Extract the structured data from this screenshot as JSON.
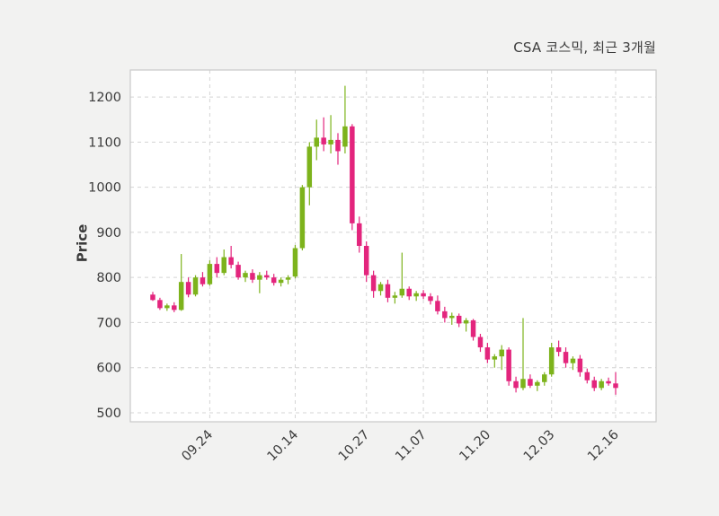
{
  "title": "CSA 코스믹, 최근 3개월",
  "y_axis": {
    "label": "Price",
    "ticks": [
      500,
      600,
      700,
      800,
      900,
      1000,
      1100,
      1200
    ],
    "range": [
      480,
      1260
    ]
  },
  "x_axis": {
    "tick_labels": [
      "09.24",
      "10.14",
      "10.27",
      "11.07",
      "11.20",
      "12.03",
      "12.16"
    ],
    "tick_indices": [
      8,
      20,
      30,
      38,
      47,
      56,
      65
    ]
  },
  "colors": {
    "up": "#7db31c",
    "down": "#e3257d",
    "grid": "#d4d4d4",
    "plot_border": "#c9c9c9",
    "plot_bg": "#ffffff",
    "page_bg": "#f2f2f1",
    "text": "#3c3c3c"
  },
  "chart_data": {
    "type": "candlestick",
    "title": "CSA 코스믹, 최근 3개월",
    "xlabel": "",
    "ylabel": "Price",
    "ylim": [
      500,
      1200
    ],
    "grid": "dashed",
    "columns": [
      "date",
      "open",
      "high",
      "low",
      "close"
    ],
    "candles": [
      [
        "09.12",
        762,
        768,
        748,
        750
      ],
      [
        "09.13",
        750,
        755,
        728,
        732
      ],
      [
        "09.16",
        732,
        742,
        726,
        738
      ],
      [
        "09.17",
        738,
        745,
        723,
        728
      ],
      [
        "09.18",
        728,
        852,
        726,
        790
      ],
      [
        "09.19",
        790,
        800,
        756,
        762
      ],
      [
        "09.20",
        762,
        805,
        758,
        800
      ],
      [
        "09.23",
        800,
        812,
        780,
        785
      ],
      [
        "09.24",
        785,
        838,
        782,
        830
      ],
      [
        "09.25",
        830,
        845,
        800,
        810
      ],
      [
        "09.26",
        810,
        862,
        805,
        845
      ],
      [
        "09.27",
        845,
        870,
        820,
        828
      ],
      [
        "09.30",
        828,
        835,
        795,
        800
      ],
      [
        "10.01",
        800,
        815,
        790,
        810
      ],
      [
        "10.02",
        810,
        818,
        788,
        795
      ],
      [
        "10.04",
        795,
        812,
        765,
        805
      ],
      [
        "10.07",
        805,
        815,
        795,
        800
      ],
      [
        "10.08",
        800,
        808,
        782,
        788
      ],
      [
        "10.10",
        788,
        800,
        780,
        795
      ],
      [
        "10.11",
        795,
        805,
        785,
        800
      ],
      [
        "10.14",
        802,
        872,
        798,
        865
      ],
      [
        "10.15",
        865,
        1005,
        860,
        1000
      ],
      [
        "10.16",
        1000,
        1100,
        960,
        1090
      ],
      [
        "10.17",
        1090,
        1150,
        1060,
        1110
      ],
      [
        "10.18",
        1110,
        1155,
        1080,
        1095
      ],
      [
        "10.21",
        1095,
        1160,
        1075,
        1105
      ],
      [
        "10.22",
        1105,
        1120,
        1050,
        1080
      ],
      [
        "10.23",
        1090,
        1225,
        1075,
        1135
      ],
      [
        "10.24",
        1135,
        1140,
        905,
        920
      ],
      [
        "10.25",
        920,
        935,
        855,
        870
      ],
      [
        "10.27",
        870,
        880,
        790,
        805
      ],
      [
        "10.29",
        805,
        815,
        755,
        770
      ],
      [
        "10.30",
        770,
        790,
        760,
        785
      ],
      [
        "10.31",
        785,
        795,
        745,
        755
      ],
      [
        "11.01",
        755,
        768,
        742,
        760
      ],
      [
        "11.04",
        760,
        855,
        755,
        775
      ],
      [
        "11.05",
        775,
        780,
        750,
        758
      ],
      [
        "11.06",
        758,
        770,
        748,
        765
      ],
      [
        "11.07",
        765,
        772,
        752,
        758
      ],
      [
        "11.08",
        758,
        765,
        740,
        748
      ],
      [
        "11.11",
        748,
        760,
        718,
        725
      ],
      [
        "11.12",
        725,
        735,
        700,
        710
      ],
      [
        "11.13",
        710,
        722,
        695,
        715
      ],
      [
        "11.14",
        715,
        720,
        690,
        698
      ],
      [
        "11.15",
        698,
        710,
        680,
        705
      ],
      [
        "11.18",
        705,
        708,
        660,
        668
      ],
      [
        "11.19",
        668,
        675,
        635,
        645
      ],
      [
        "11.20",
        645,
        655,
        610,
        618
      ],
      [
        "11.21",
        618,
        630,
        600,
        625
      ],
      [
        "11.22",
        625,
        650,
        595,
        640
      ],
      [
        "11.25",
        640,
        645,
        560,
        570
      ],
      [
        "11.26",
        570,
        580,
        545,
        555
      ],
      [
        "11.27",
        555,
        710,
        550,
        575
      ],
      [
        "11.28",
        575,
        585,
        555,
        560
      ],
      [
        "11.29",
        560,
        572,
        548,
        568
      ],
      [
        "12.02",
        568,
        590,
        560,
        585
      ],
      [
        "12.03",
        585,
        655,
        580,
        645
      ],
      [
        "12.04",
        645,
        660,
        625,
        635
      ],
      [
        "12.05",
        635,
        645,
        600,
        610
      ],
      [
        "12.06",
        610,
        625,
        595,
        620
      ],
      [
        "12.09",
        620,
        628,
        580,
        590
      ],
      [
        "12.10",
        590,
        598,
        565,
        572
      ],
      [
        "12.11",
        572,
        580,
        548,
        555
      ],
      [
        "12.12",
        555,
        575,
        550,
        570
      ],
      [
        "12.13",
        570,
        578,
        560,
        565
      ],
      [
        "12.16",
        565,
        590,
        540,
        555
      ]
    ]
  }
}
